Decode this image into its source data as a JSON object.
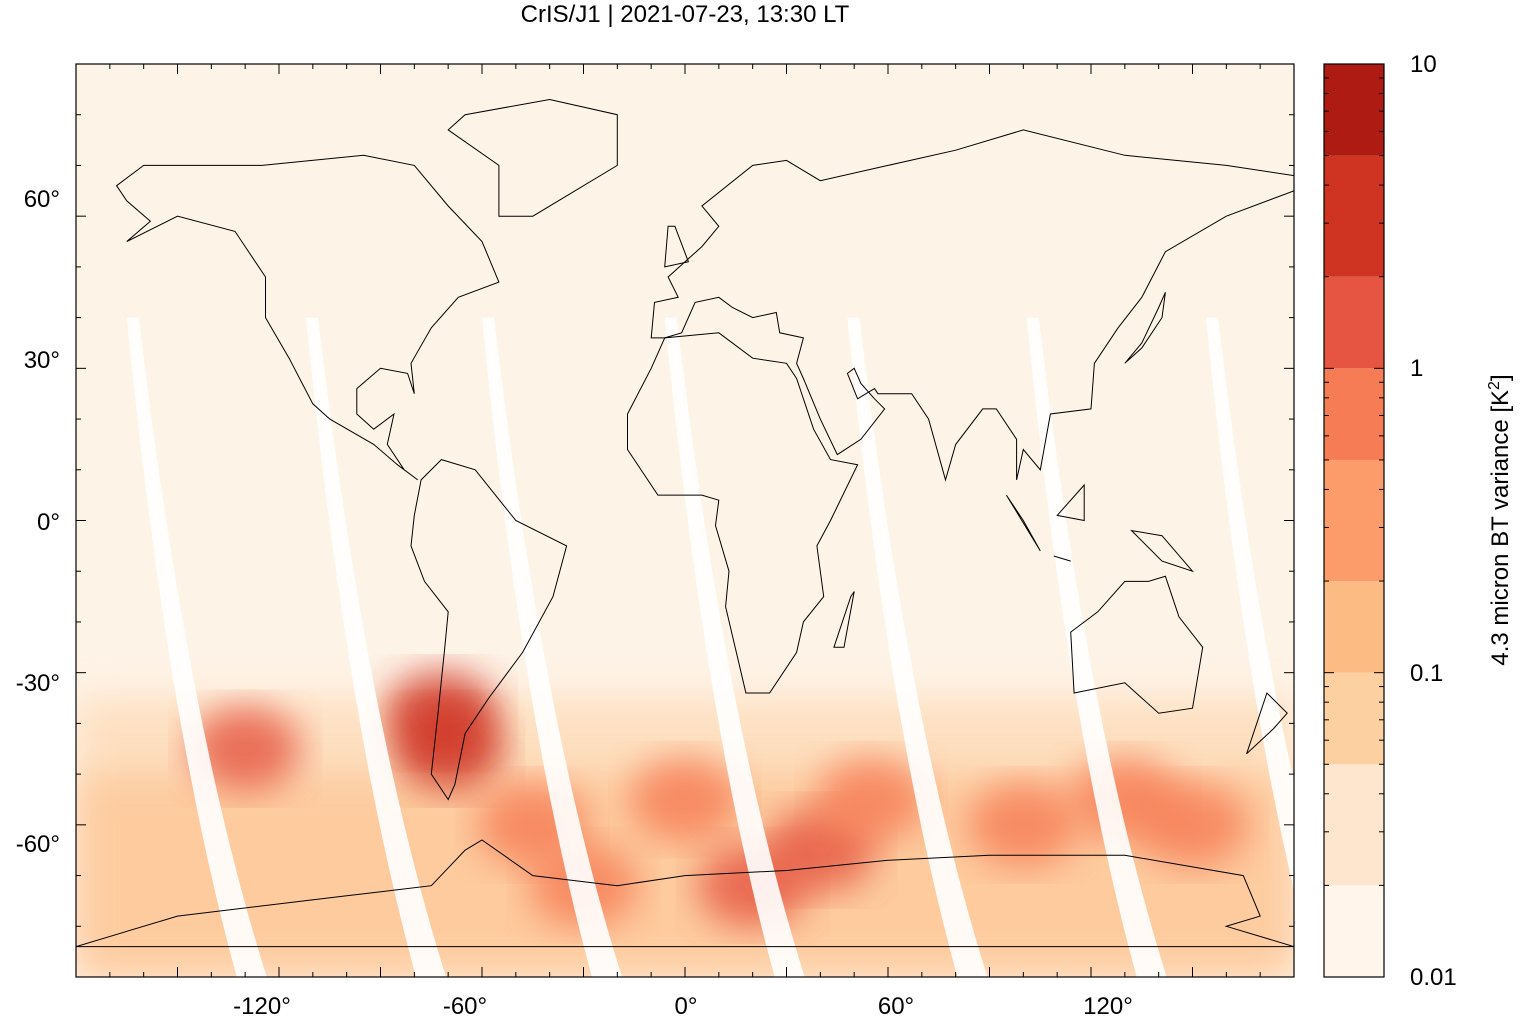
{
  "chart_data": {
    "type": "heatmap",
    "title": "CrIS/J1 | 2021-07-23, 13:30 LT",
    "xlabel": "",
    "ylabel": "",
    "xlim": [
      -180,
      180
    ],
    "ylim": [
      -90,
      90
    ],
    "x_ticks": [
      -120,
      -60,
      0,
      60,
      120
    ],
    "x_tick_labels": [
      "-120°",
      "-60°",
      "0°",
      "60°",
      "120°"
    ],
    "y_ticks": [
      60,
      30,
      0,
      -30,
      -60
    ],
    "y_tick_labels": [
      "60°",
      "30°",
      "0°",
      "-30°",
      "-60°"
    ],
    "colorbar": {
      "label": "4.3 micron BT variance [K",
      "label_superscript": "2",
      "label_suffix": "]",
      "scale": "log",
      "range": [
        0.01,
        10
      ],
      "tick_values": [
        0.01,
        0.1,
        1,
        10
      ],
      "tick_labels": [
        "0.01",
        "0.1",
        "1",
        "10"
      ],
      "levels": [
        0.01,
        0.02,
        0.05,
        0.1,
        0.2,
        0.5,
        1,
        2,
        5,
        10
      ],
      "colors": [
        "#fff5eb",
        "#fee6ce",
        "#fdd0a2",
        "#fdbb84",
        "#fc9c6a",
        "#f67c55",
        "#e55541",
        "#cf3321",
        "#ae1b12",
        "#8c0500"
      ]
    },
    "background_color": "#fef3e7",
    "hotspots": [
      {
        "lon": -70,
        "lat": -45,
        "value": 3.0
      },
      {
        "lon": -72,
        "lat": -38,
        "value": 2.0
      },
      {
        "lon": -130,
        "lat": -45,
        "value": 1.0
      },
      {
        "lon": -45,
        "lat": -60,
        "value": 0.8
      },
      {
        "lon": 0,
        "lat": -55,
        "value": 0.8
      },
      {
        "lon": 20,
        "lat": -72,
        "value": 1.2
      },
      {
        "lon": 40,
        "lat": -65,
        "value": 1.2
      },
      {
        "lon": 55,
        "lat": -55,
        "value": 0.7
      },
      {
        "lon": 100,
        "lat": -60,
        "value": 0.8
      },
      {
        "lon": 130,
        "lat": -55,
        "value": 0.8
      },
      {
        "lon": 150,
        "lat": -60,
        "value": 0.8
      },
      {
        "lon": -30,
        "lat": -72,
        "value": 0.6
      }
    ],
    "grid": false,
    "legend": "colorbar-right"
  }
}
